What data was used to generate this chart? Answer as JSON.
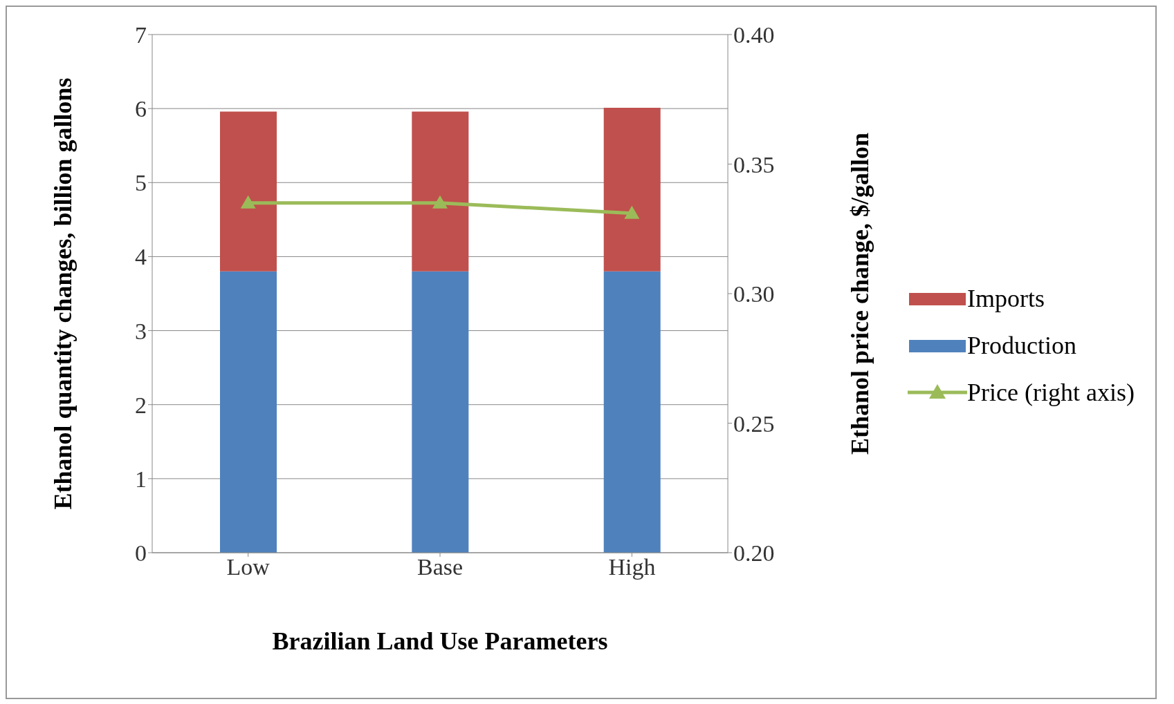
{
  "chart_data": {
    "type": "bar",
    "stacked": true,
    "xlabel": "Brazilian Land Use Parameters",
    "ylabel": "Ethanol quantity changes, billion gallons",
    "y2label": "Ethanol price change, $/gallon",
    "categories": [
      "Low",
      "Base",
      "High"
    ],
    "series": [
      {
        "name": "Production",
        "color": "#4f81bd",
        "values": [
          3.8,
          3.8,
          3.8
        ]
      },
      {
        "name": "Imports",
        "color": "#c0504d",
        "values": [
          2.16,
          2.16,
          2.21
        ]
      },
      {
        "name": "Price (right axis)",
        "type": "line",
        "axis": "y2",
        "color": "#9bbb59",
        "marker": "triangle",
        "values": [
          0.335,
          0.335,
          0.331
        ]
      }
    ],
    "ylim": [
      0,
      7
    ],
    "yticks": [
      0,
      1,
      2,
      3,
      4,
      5,
      6,
      7
    ],
    "y2lim": [
      0.2,
      0.4
    ],
    "y2ticks": [
      {
        "value": 0.2,
        "label": "0.20"
      },
      {
        "value": 0.25,
        "label": "0.25"
      },
      {
        "value": 0.3,
        "label": "0.30"
      },
      {
        "value": 0.35,
        "label": "0.35"
      },
      {
        "value": 0.4,
        "label": "0.40"
      }
    ],
    "grid": "y",
    "legend": "right"
  }
}
